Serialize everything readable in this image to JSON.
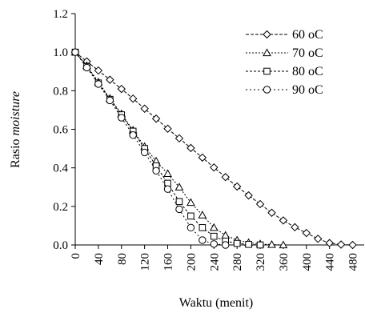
{
  "chart_data": {
    "type": "line",
    "xlabel": "Waktu (menit)",
    "ylabel_plain": "Rasio ",
    "ylabel_italic": "moisture",
    "xlim": [
      0,
      500
    ],
    "ylim": [
      0,
      1.2
    ],
    "x_ticks": [
      "0",
      "40",
      "80",
      "120",
      "160",
      "200",
      "240",
      "280",
      "320",
      "360",
      "400",
      "440",
      "480"
    ],
    "y_ticks": [
      "0.0",
      "0.2",
      "0.4",
      "0.6",
      "0.8",
      "1.0",
      "1.2"
    ],
    "grid": false,
    "legend_position": "top-right",
    "series": [
      {
        "name": "60 oC",
        "marker": "diamond",
        "dash": "4,2",
        "x": [
          0,
          20,
          40,
          60,
          80,
          100,
          120,
          140,
          160,
          180,
          200,
          220,
          240,
          260,
          280,
          300,
          320,
          340,
          360,
          380,
          400,
          420,
          440,
          460,
          480
        ],
        "y": [
          1.0,
          0.952,
          0.905,
          0.857,
          0.809,
          0.759,
          0.707,
          0.655,
          0.603,
          0.553,
          0.503,
          0.453,
          0.402,
          0.352,
          0.303,
          0.257,
          0.212,
          0.167,
          0.127,
          0.092,
          0.062,
          0.032,
          0.01,
          0.002,
          0.0
        ]
      },
      {
        "name": "70 oC",
        "marker": "triangle",
        "dash": "2,2",
        "x": [
          0,
          20,
          40,
          60,
          80,
          100,
          120,
          140,
          160,
          180,
          200,
          220,
          240,
          260,
          280,
          300,
          320,
          340,
          360
        ],
        "y": [
          1.0,
          0.93,
          0.845,
          0.76,
          0.68,
          0.595,
          0.51,
          0.435,
          0.37,
          0.3,
          0.22,
          0.155,
          0.09,
          0.05,
          0.025,
          0.012,
          0.005,
          0.002,
          0.0
        ]
      },
      {
        "name": "80 oC",
        "marker": "square",
        "dash": "3,2",
        "x": [
          0,
          20,
          40,
          60,
          80,
          100,
          120,
          140,
          160,
          180,
          200,
          220,
          240,
          260,
          280,
          300,
          320
        ],
        "y": [
          1.0,
          0.925,
          0.84,
          0.755,
          0.675,
          0.59,
          0.5,
          0.41,
          0.32,
          0.225,
          0.15,
          0.09,
          0.045,
          0.02,
          0.008,
          0.003,
          0.0
        ]
      },
      {
        "name": "90 oC",
        "marker": "circle",
        "dash": "2,3",
        "x": [
          0,
          20,
          40,
          60,
          80,
          100,
          120,
          140,
          160,
          180,
          200,
          220,
          240,
          260
        ],
        "y": [
          1.0,
          0.92,
          0.835,
          0.75,
          0.66,
          0.57,
          0.48,
          0.385,
          0.29,
          0.185,
          0.09,
          0.025,
          0.005,
          0.0
        ]
      }
    ]
  }
}
